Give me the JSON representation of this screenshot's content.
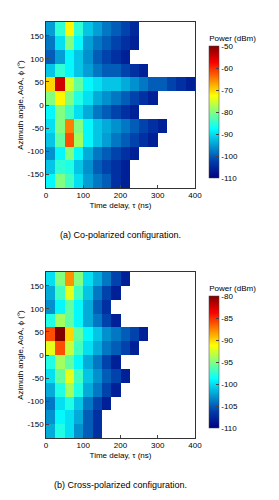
{
  "chart_data": [
    {
      "type": "heatmap",
      "caption": "(a) Co-polarized configuration.",
      "xlabel": "Time delay, τ (ns)",
      "ylabel": "Azimuth angle, AoA, ϕ (°)",
      "color": "Jet",
      "xlim": [
        0,
        400
      ],
      "xticks": [
        0,
        100,
        200,
        300,
        400
      ],
      "ylim": [
        -180,
        180
      ],
      "yticks": [
        -150,
        -100,
        -50,
        0,
        50,
        100,
        150
      ],
      "x": [
        12.5,
        37.5,
        62.5,
        87.5,
        112.5,
        137.5,
        162.5,
        187.5,
        212.5,
        237.5,
        262.5,
        287.5,
        312.5,
        337.5,
        362.5,
        387.5
      ],
      "y": [
        -165,
        -135,
        -105,
        -75,
        -45,
        -15,
        15,
        45,
        75,
        105,
        135,
        165
      ],
      "z": [
        [
          -88,
          -80,
          -84,
          -90,
          -95,
          -98,
          -100,
          -104,
          -106,
          null,
          null,
          null,
          null,
          null,
          null,
          null
        ],
        [
          -92,
          -85,
          -86,
          -92,
          -96,
          -100,
          -102,
          -104,
          -106,
          null,
          null,
          null,
          null,
          null,
          null,
          null
        ],
        [
          -96,
          -88,
          -80,
          -88,
          -94,
          -98,
          -100,
          -102,
          -104,
          -106,
          null,
          null,
          null,
          null,
          null,
          null
        ],
        [
          -92,
          -82,
          -62,
          -78,
          -88,
          -92,
          -95,
          -98,
          -100,
          -102,
          -104,
          -106,
          null,
          null,
          null,
          null
        ],
        [
          -90,
          -80,
          -65,
          -80,
          -88,
          -92,
          -94,
          -96,
          -98,
          -100,
          -102,
          -104,
          -106,
          null,
          null,
          null
        ],
        [
          -88,
          -80,
          -84,
          -90,
          -94,
          -98,
          -100,
          -102,
          -104,
          -106,
          null,
          null,
          null,
          null,
          null,
          null
        ],
        [
          -80,
          -72,
          -80,
          -86,
          -90,
          -94,
          -96,
          -98,
          -100,
          -102,
          -104,
          -106,
          null,
          null,
          null,
          null
        ],
        [
          -70,
          -55,
          -75,
          -82,
          -88,
          -90,
          -92,
          -92,
          -94,
          -96,
          -98,
          -100,
          -100,
          -102,
          -104,
          -106
        ],
        [
          -92,
          -85,
          -88,
          -92,
          -95,
          -98,
          -100,
          -100,
          -102,
          -104,
          -106,
          null,
          null,
          null,
          null,
          null
        ],
        [
          -100,
          -95,
          -88,
          -92,
          -96,
          -100,
          -102,
          -104,
          -106,
          null,
          null,
          null,
          null,
          null,
          null,
          null
        ],
        [
          -98,
          -90,
          -80,
          -88,
          -95,
          -98,
          -100,
          -102,
          -104,
          -106,
          null,
          null,
          null,
          null,
          null,
          null
        ],
        [
          -95,
          -85,
          -72,
          -85,
          -92,
          -95,
          -98,
          -100,
          -102,
          -105,
          null,
          null,
          null,
          null,
          null,
          null
        ]
      ],
      "colorbar": {
        "title": "Power (dBm)",
        "range": [
          -110,
          -50
        ],
        "ticks": [
          -110,
          -100,
          -90,
          -80,
          -70,
          -60,
          -50
        ]
      }
    },
    {
      "type": "heatmap",
      "caption": "(b) Cross-polarized configuration.",
      "xlabel": "Time delay, τ (ns)",
      "ylabel": "Azimuth angle, AoA, ϕ (°)",
      "color": "Jet",
      "xlim": [
        0,
        400
      ],
      "xticks": [
        0,
        100,
        200,
        300,
        400
      ],
      "ylim": [
        -180,
        180
      ],
      "yticks": [
        -150,
        -100,
        -50,
        0,
        50,
        100,
        150
      ],
      "x": [
        12.5,
        37.5,
        62.5,
        87.5,
        112.5,
        137.5,
        162.5,
        187.5,
        212.5,
        237.5,
        262.5,
        287.5,
        312.5,
        337.5,
        362.5,
        387.5
      ],
      "y": [
        -165,
        -135,
        -105,
        -75,
        -45,
        -15,
        15,
        45,
        75,
        105,
        135,
        165
      ],
      "z": [
        [
          -102,
          -98,
          -100,
          -103,
          -105,
          -107,
          null,
          null,
          null,
          null,
          null,
          null,
          null,
          null,
          null,
          null
        ],
        [
          -103,
          -99,
          -100,
          -102,
          -105,
          -107,
          null,
          null,
          null,
          null,
          null,
          null,
          null,
          null,
          null,
          null
        ],
        [
          -104,
          -100,
          -98,
          -101,
          -104,
          -106,
          -108,
          null,
          null,
          null,
          null,
          null,
          null,
          null,
          null,
          null
        ],
        [
          -102,
          -98,
          -94,
          -98,
          -102,
          -104,
          -106,
          -108,
          null,
          null,
          null,
          null,
          null,
          null,
          null,
          null
        ],
        [
          -100,
          -96,
          -92,
          -97,
          -101,
          -103,
          -105,
          -106,
          -108,
          null,
          null,
          null,
          null,
          null,
          null,
          null
        ],
        [
          -98,
          -94,
          -96,
          -99,
          -102,
          -104,
          -106,
          -108,
          null,
          null,
          null,
          null,
          null,
          null,
          null,
          null
        ],
        [
          -92,
          -86,
          -93,
          -97,
          -100,
          -102,
          -104,
          -105,
          -106,
          -108,
          null,
          null,
          null,
          null,
          null,
          null
        ],
        [
          -86,
          -80,
          -90,
          -96,
          -99,
          -101,
          -103,
          -104,
          -105,
          -106,
          -108,
          null,
          null,
          null,
          null,
          null
        ],
        [
          -98,
          -94,
          -96,
          -99,
          -102,
          -104,
          -106,
          -108,
          null,
          null,
          null,
          null,
          null,
          null,
          null,
          null
        ],
        [
          -103,
          -99,
          -96,
          -99,
          -102,
          -105,
          -107,
          null,
          null,
          null,
          null,
          null,
          null,
          null,
          null,
          null
        ],
        [
          -102,
          -97,
          -92,
          -97,
          -101,
          -104,
          -106,
          -108,
          null,
          null,
          null,
          null,
          null,
          null,
          null,
          null
        ],
        [
          -100,
          -95,
          -88,
          -95,
          -100,
          -102,
          -104,
          -106,
          -108,
          null,
          null,
          null,
          null,
          null,
          null,
          null
        ]
      ],
      "colorbar": {
        "title": "Power (dBm)",
        "range": [
          -110,
          -80
        ],
        "ticks": [
          -110,
          -105,
          -100,
          -95,
          -90,
          -85,
          -80
        ]
      }
    }
  ]
}
